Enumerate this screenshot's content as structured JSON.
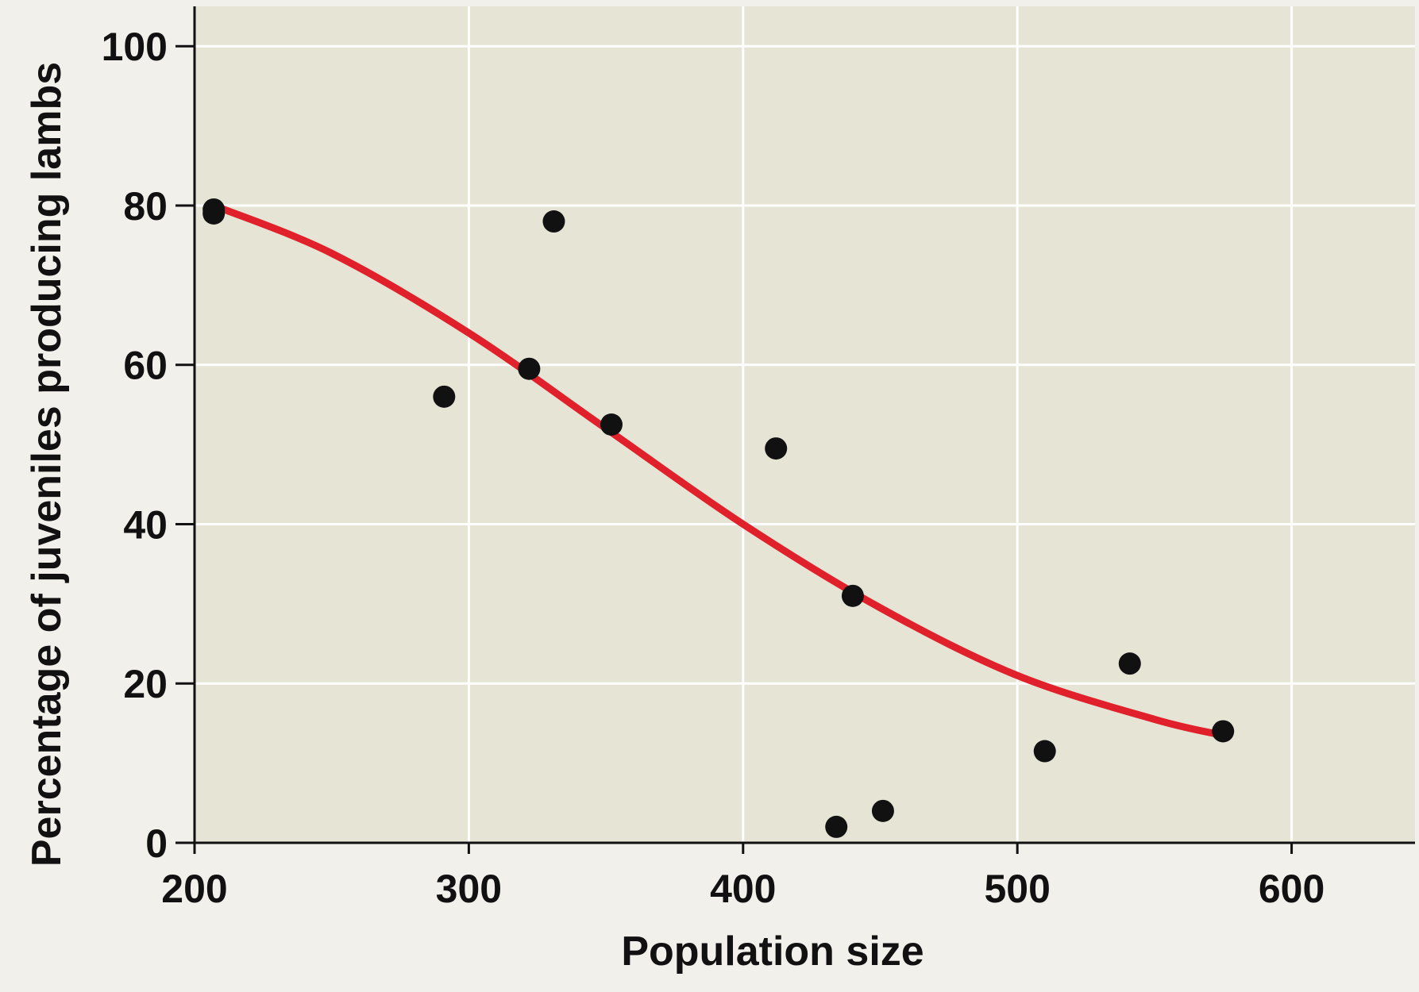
{
  "chart_data": {
    "type": "scatter",
    "title": "",
    "xlabel": "Population size",
    "ylabel": "Percentage of juveniles producing lambs",
    "xlim": [
      200,
      645
    ],
    "ylim": [
      0,
      105
    ],
    "x_ticks": [
      200,
      300,
      400,
      500,
      600
    ],
    "y_ticks": [
      0,
      20,
      40,
      60,
      80,
      100
    ],
    "grid": true,
    "legend": "none",
    "series": [
      {
        "kind": "points",
        "x": [
          207,
          207,
          291,
          322,
          331,
          352,
          412,
          434,
          440,
          451,
          510,
          541,
          575
        ],
        "y": [
          79.5,
          79,
          56,
          59.5,
          78,
          52.5,
          49.5,
          2,
          31,
          4,
          11.5,
          22.5,
          14
        ]
      },
      {
        "kind": "fitted-curve",
        "x": [
          207,
          250,
          300,
          350,
          400,
          450,
          500,
          550,
          575
        ],
        "y": [
          80,
          74,
          64,
          52,
          40,
          29.5,
          21,
          15.5,
          13.5
        ]
      }
    ],
    "colors": {
      "plot_background": "#e6e4d4",
      "page_background": "#f2f0ea",
      "grid": "#ffffff",
      "points": "#111111",
      "curve": "#e0202a"
    }
  }
}
